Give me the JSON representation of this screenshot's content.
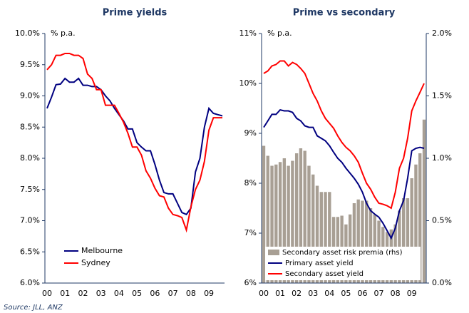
{
  "chart_data": [
    {
      "type": "line",
      "title": "Prime yields",
      "ylabel": "% p.a.",
      "categories": [
        "00",
        null,
        null,
        null,
        "01",
        null,
        null,
        null,
        "02",
        null,
        null,
        null,
        "03",
        null,
        null,
        null,
        "04",
        null,
        null,
        null,
        "05",
        null,
        null,
        null,
        "06",
        null,
        null,
        null,
        "07",
        null,
        null,
        null,
        "08",
        null,
        null,
        null,
        "09",
        null,
        null,
        null
      ],
      "series": [
        {
          "name": "Melbourne",
          "color": "#000080",
          "values": [
            8.8,
            8.98,
            9.18,
            9.19,
            9.28,
            9.22,
            9.22,
            9.28,
            9.17,
            9.17,
            9.15,
            9.15,
            9.1,
            9.0,
            8.92,
            8.8,
            8.7,
            8.6,
            8.47,
            8.47,
            8.25,
            8.18,
            8.12,
            8.12,
            7.9,
            7.65,
            7.45,
            7.43,
            7.43,
            7.28,
            7.13,
            7.1,
            7.2,
            7.78,
            8.0,
            8.5,
            8.8,
            8.72,
            8.7,
            8.68
          ]
        },
        {
          "name": "Sydney",
          "color": "#ff0000",
          "values": [
            9.42,
            9.5,
            9.65,
            9.65,
            9.68,
            9.68,
            9.65,
            9.65,
            9.6,
            9.35,
            9.28,
            9.1,
            9.1,
            8.85,
            8.85,
            8.85,
            8.72,
            8.58,
            8.4,
            8.18,
            8.18,
            8.05,
            7.8,
            7.68,
            7.52,
            7.4,
            7.38,
            7.2,
            7.1,
            7.08,
            7.05,
            6.85,
            7.22,
            7.5,
            7.65,
            7.95,
            8.45,
            8.65,
            8.65,
            8.65
          ]
        }
      ],
      "ylim": [
        6,
        10
      ],
      "yticks": [
        {
          "value": 6,
          "label": "6.0%"
        },
        {
          "value": 6.5,
          "label": "6.5%"
        },
        {
          "value": 7,
          "label": "7.0%"
        },
        {
          "value": 7.5,
          "label": "7.5%"
        },
        {
          "value": 8,
          "label": "8.0%"
        },
        {
          "value": 8.5,
          "label": "8.5%"
        },
        {
          "value": 9,
          "label": "9.0%"
        },
        {
          "value": 9.5,
          "label": "9.5%"
        },
        {
          "value": 10,
          "label": "10.0%"
        }
      ],
      "legend": "lower left"
    },
    {
      "type": "combo",
      "title": "Prime vs secondary",
      "ylabel": "% p.a.",
      "categories": [
        "00",
        null,
        null,
        null,
        "01",
        null,
        null,
        null,
        "02",
        null,
        null,
        null,
        "03",
        null,
        null,
        null,
        "04",
        null,
        null,
        null,
        "05",
        null,
        null,
        null,
        "06",
        null,
        null,
        null,
        "07",
        null,
        null,
        null,
        "08",
        null,
        null,
        null,
        "09",
        null,
        null,
        null
      ],
      "series": [
        {
          "name": "Secondary asset risk premia (rhs)",
          "type": "bar",
          "axis": "y2",
          "color": "#a89f94",
          "values": [
            1.1,
            1.02,
            0.94,
            0.95,
            0.97,
            1.0,
            0.94,
            0.98,
            1.04,
            1.08,
            1.06,
            0.94,
            0.87,
            0.78,
            0.73,
            0.73,
            0.73,
            0.53,
            0.53,
            0.54,
            0.47,
            0.55,
            0.64,
            0.67,
            0.66,
            0.66,
            0.6,
            0.55,
            0.5,
            0.45,
            0.41,
            0.43,
            0.47,
            0.58,
            0.68,
            0.68,
            0.84,
            0.95,
            1.04,
            1.31
          ]
        },
        {
          "name": "Primary asset yield",
          "type": "line",
          "color": "#000080",
          "values": [
            9.12,
            9.25,
            9.38,
            9.38,
            9.47,
            9.45,
            9.45,
            9.42,
            9.3,
            9.25,
            9.15,
            9.12,
            9.12,
            8.95,
            8.9,
            8.85,
            8.75,
            8.62,
            8.5,
            8.42,
            8.3,
            8.2,
            8.1,
            7.98,
            7.82,
            7.6,
            7.45,
            7.38,
            7.32,
            7.2,
            7.05,
            6.9,
            7.1,
            7.45,
            7.65,
            8.1,
            8.65,
            8.7,
            8.72,
            8.7
          ]
        },
        {
          "name": "Secondary asset yield",
          "type": "line",
          "color": "#ff0000",
          "values": [
            10.2,
            10.25,
            10.35,
            10.38,
            10.45,
            10.45,
            10.35,
            10.42,
            10.38,
            10.3,
            10.2,
            10.0,
            9.8,
            9.65,
            9.45,
            9.3,
            9.2,
            9.1,
            8.95,
            8.82,
            8.72,
            8.65,
            8.55,
            8.42,
            8.2,
            8.0,
            7.88,
            7.72,
            7.6,
            7.58,
            7.55,
            7.5,
            7.82,
            8.3,
            8.5,
            8.9,
            9.45,
            9.65,
            9.82,
            10.0
          ]
        }
      ],
      "ylim": [
        6,
        11
      ],
      "yticks": [
        {
          "value": 6,
          "label": "6%"
        },
        {
          "value": 7,
          "label": "7%"
        },
        {
          "value": 8,
          "label": "8%"
        },
        {
          "value": 9,
          "label": "9%"
        },
        {
          "value": 10,
          "label": "10%"
        },
        {
          "value": 11,
          "label": "11%"
        }
      ],
      "y2lim": [
        0,
        2
      ],
      "y2ticks": [
        {
          "value": 0,
          "label": "0.0%"
        },
        {
          "value": 0.5,
          "label": "0.5%"
        },
        {
          "value": 1,
          "label": "1.0%"
        },
        {
          "value": 1.5,
          "label": "1.5%"
        },
        {
          "value": 2,
          "label": "2.0%"
        }
      ],
      "legend": "lower center"
    }
  ],
  "source": "Source: JLL, ANZ"
}
